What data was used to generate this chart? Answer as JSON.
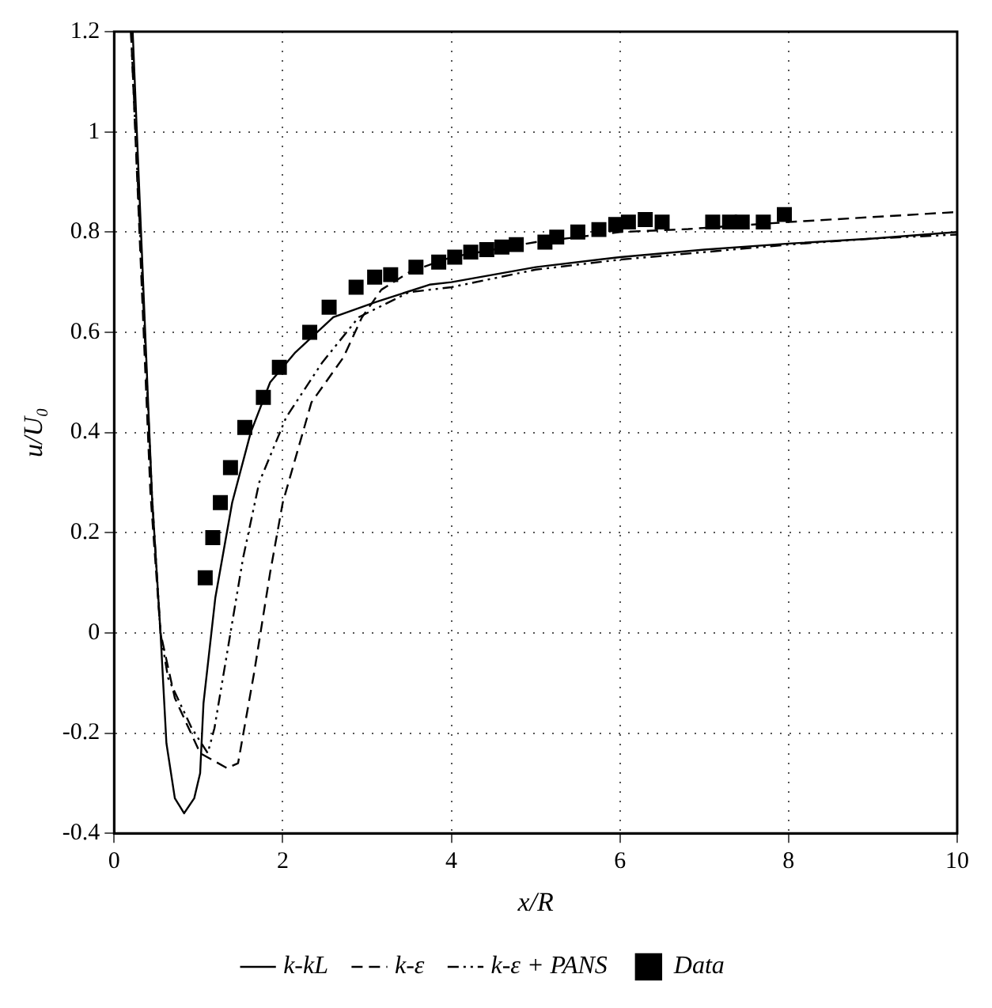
{
  "chart_data": {
    "type": "line",
    "xlabel": "x/R",
    "ylabel": "u/U₀",
    "xlim": [
      0,
      10
    ],
    "xticks": [
      0,
      2,
      4,
      6,
      8,
      10
    ],
    "ylim": [
      -0.4,
      1.2
    ],
    "yticks": [
      -0.4,
      -0.2,
      0,
      0.2,
      0.4,
      0.6,
      0.8,
      1,
      1.2
    ],
    "grid": true,
    "legend": "bottom",
    "series": [
      {
        "name": "k-kL",
        "line_style": "solid",
        "color": "#000000",
        "x": [
          0.22,
          0.45,
          0.55,
          0.62,
          0.72,
          0.83,
          0.95,
          1.02,
          1.06,
          1.2,
          1.4,
          1.62,
          1.85,
          2.15,
          2.6,
          3.1,
          3.74,
          4.0,
          5.0,
          6.0,
          7.0,
          8.0,
          9.0,
          10.0
        ],
        "values": [
          1.2,
          0.27,
          0.0,
          -0.22,
          -0.33,
          -0.36,
          -0.33,
          -0.28,
          -0.14,
          0.07,
          0.26,
          0.4,
          0.5,
          0.56,
          0.63,
          0.66,
          0.695,
          0.7,
          0.73,
          0.75,
          0.765,
          0.777,
          0.787,
          0.8
        ]
      },
      {
        "name": "k-ε",
        "line_style": "dashed",
        "color": "#000000",
        "x": [
          0.2,
          0.43,
          0.55,
          0.72,
          1.02,
          1.34,
          1.47,
          1.66,
          1.85,
          2.0,
          2.34,
          2.72,
          2.94,
          3.17,
          3.5,
          4.0,
          5.0,
          6.0,
          6.81,
          8.0,
          9.0,
          10.0
        ],
        "values": [
          1.2,
          0.28,
          0.0,
          -0.13,
          -0.24,
          -0.27,
          -0.26,
          -0.08,
          0.12,
          0.26,
          0.46,
          0.55,
          0.63,
          0.685,
          0.72,
          0.75,
          0.78,
          0.8,
          0.806,
          0.82,
          0.83,
          0.84
        ]
      },
      {
        "name": "k-ε + PANS",
        "line_style": "dashdot",
        "color": "#000000",
        "x": [
          0.2,
          0.45,
          0.55,
          0.64,
          0.92,
          1.11,
          1.19,
          1.34,
          1.53,
          1.72,
          2.04,
          2.47,
          2.9,
          3.5,
          4.0,
          5.0,
          6.0,
          7.0,
          8.0,
          9.0,
          10.0
        ],
        "values": [
          1.2,
          0.27,
          0.0,
          -0.09,
          -0.19,
          -0.24,
          -0.19,
          -0.04,
          0.15,
          0.3,
          0.43,
          0.54,
          0.63,
          0.68,
          0.69,
          0.725,
          0.745,
          0.76,
          0.775,
          0.787,
          0.795
        ]
      },
      {
        "name": "Data",
        "type": "scatter",
        "marker": "square",
        "color": "#000000",
        "x": [
          1.08,
          1.17,
          1.26,
          1.38,
          1.55,
          1.77,
          1.96,
          2.32,
          2.55,
          2.87,
          3.09,
          3.28,
          3.58,
          3.85,
          4.04,
          4.23,
          4.42,
          4.6,
          4.77,
          5.11,
          5.25,
          5.5,
          5.75,
          5.95,
          6.1,
          6.3,
          6.5,
          7.1,
          7.3,
          7.45,
          7.7,
          7.95
        ],
        "values": [
          0.11,
          0.19,
          0.26,
          0.33,
          0.41,
          0.47,
          0.53,
          0.6,
          0.65,
          0.69,
          0.71,
          0.715,
          0.73,
          0.74,
          0.75,
          0.76,
          0.765,
          0.77,
          0.775,
          0.78,
          0.79,
          0.8,
          0.805,
          0.815,
          0.82,
          0.825,
          0.82,
          0.82,
          0.82,
          0.82,
          0.82,
          0.835
        ]
      }
    ]
  }
}
